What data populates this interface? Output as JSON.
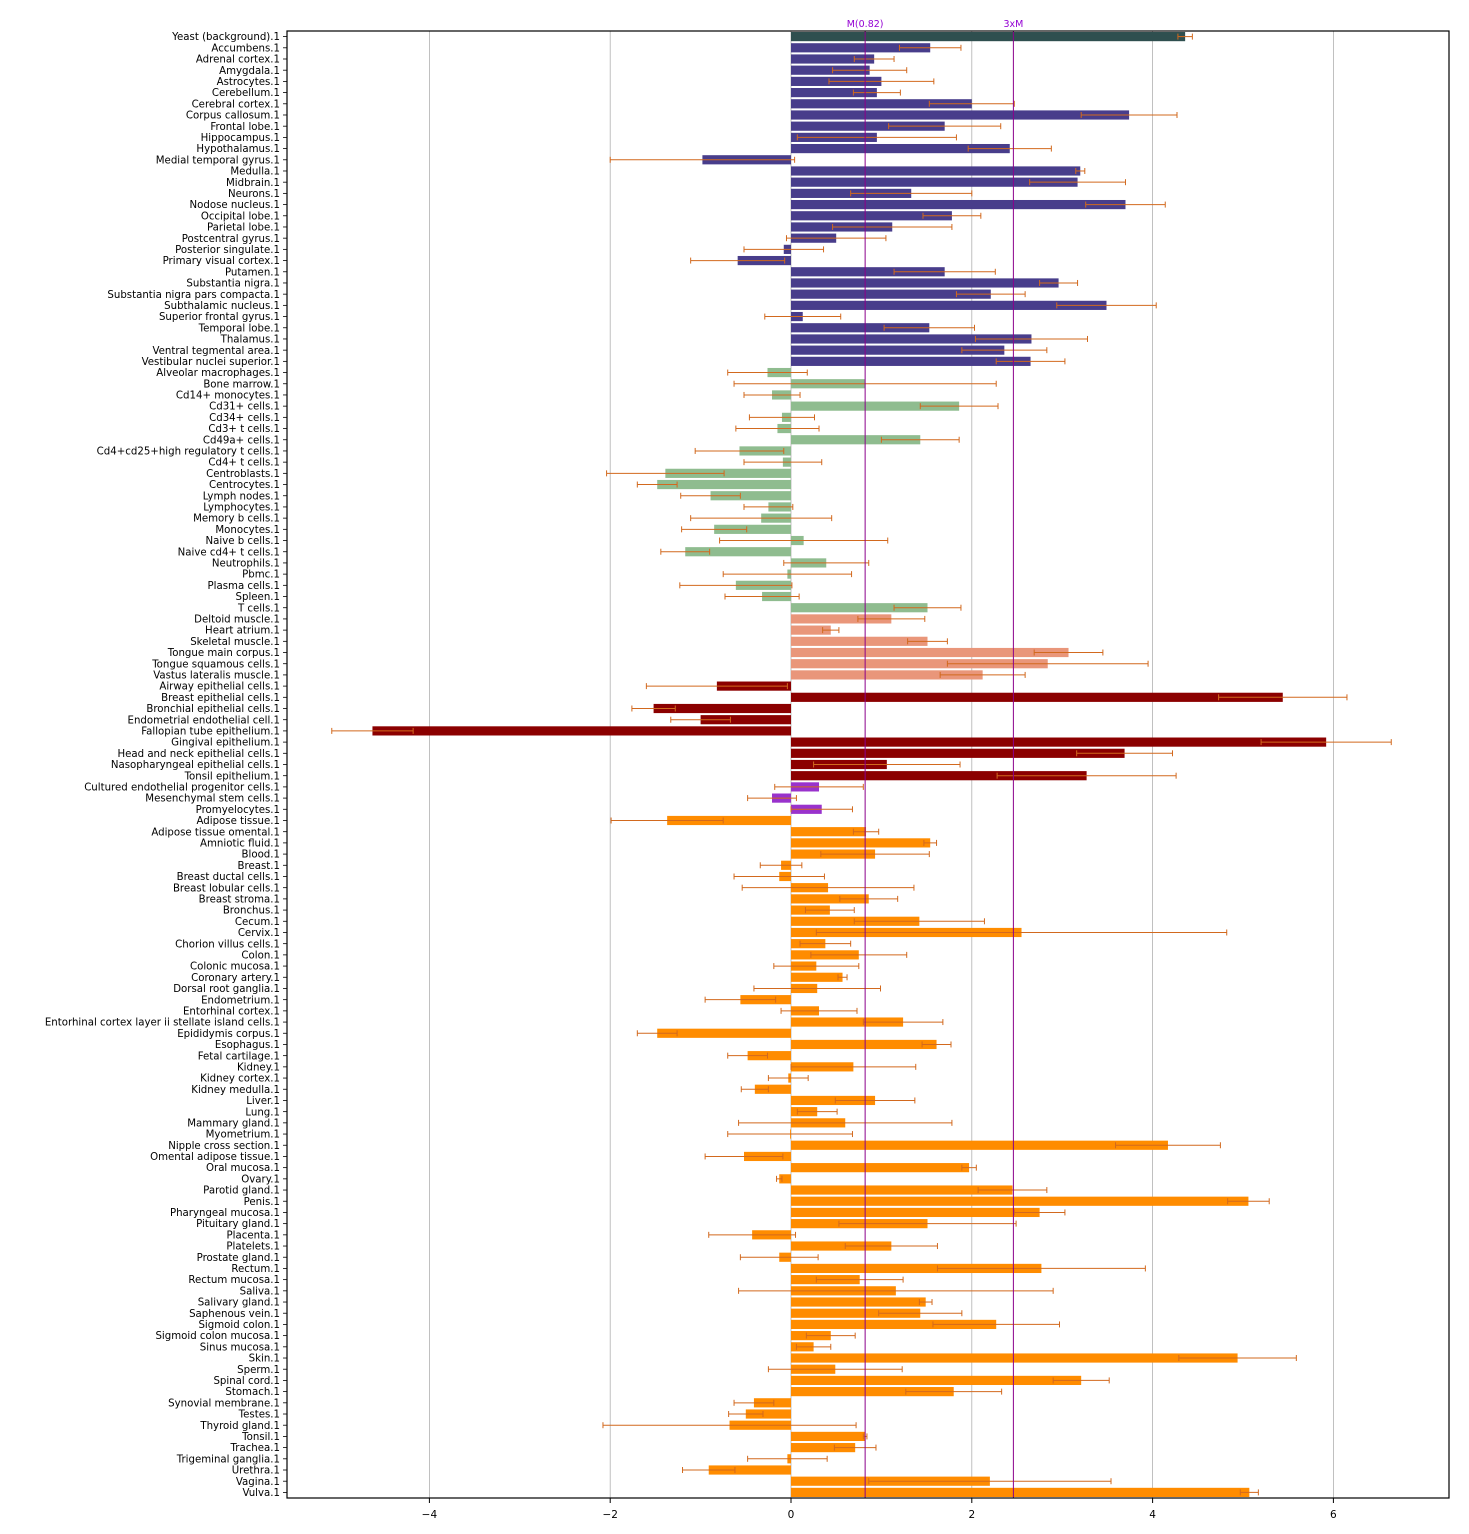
{
  "chart_data": {
    "type": "bar",
    "orientation": "horizontal",
    "title": "",
    "xlabel": "",
    "ylabel": "",
    "xlim": [
      -5.6,
      7.3
    ],
    "xticks": [
      -4,
      -2,
      0,
      2,
      4,
      6
    ],
    "xtick_labels": [
      "−4",
      "−2",
      "0",
      "2",
      "4",
      "6"
    ],
    "grid": "vertical",
    "reference_lines": [
      {
        "label": "M(0.82)",
        "value": 0.82
      },
      {
        "label": "3xM",
        "value": 2.46
      }
    ],
    "error_bar_color": "#D2691E",
    "group_colors": {
      "background": "#2F4F4F",
      "brain": "#483D8B",
      "blood": "#8FBC8F",
      "muscle": "#E9967A",
      "epithelium": "#8B0000",
      "stem": "#9932CC",
      "other": "#FF8C00"
    },
    "bars": [
      {
        "label": "Yeast (background).1",
        "value": 4.36,
        "err": 0.08,
        "group": "background"
      },
      {
        "label": "Accumbens.1",
        "value": 1.54,
        "err": 0.34,
        "group": "brain"
      },
      {
        "label": "Adrenal cortex.1",
        "value": 0.92,
        "err": 0.22,
        "group": "brain"
      },
      {
        "label": "Amygdala.1",
        "value": 0.87,
        "err": 0.41,
        "group": "brain"
      },
      {
        "label": "Astrocytes.1",
        "value": 1.0,
        "err": 0.58,
        "group": "brain"
      },
      {
        "label": "Cerebellum.1",
        "value": 0.95,
        "err": 0.26,
        "group": "brain"
      },
      {
        "label": "Cerebral cortex.1",
        "value": 2.0,
        "err": 0.47,
        "group": "brain"
      },
      {
        "label": "Corpus callosum.1",
        "value": 3.74,
        "err": 0.53,
        "group": "brain"
      },
      {
        "label": "Frontal lobe.1",
        "value": 1.7,
        "err": 0.62,
        "group": "brain"
      },
      {
        "label": "Hippocampus.1",
        "value": 0.95,
        "err": 0.88,
        "group": "brain"
      },
      {
        "label": "Hypothalamus.1",
        "value": 2.42,
        "err": 0.46,
        "group": "brain"
      },
      {
        "label": "Medial temporal gyrus.1",
        "value": -0.98,
        "err": 1.02,
        "group": "brain"
      },
      {
        "label": "Medulla.1",
        "value": 3.2,
        "err": 0.05,
        "group": "brain"
      },
      {
        "label": "Midbrain.1",
        "value": 3.17,
        "err": 0.53,
        "group": "brain"
      },
      {
        "label": "Neurons.1",
        "value": 1.33,
        "err": 0.67,
        "group": "brain"
      },
      {
        "label": "Nodose nucleus.1",
        "value": 3.7,
        "err": 0.44,
        "group": "brain"
      },
      {
        "label": "Occipital lobe.1",
        "value": 1.78,
        "err": 0.32,
        "group": "brain"
      },
      {
        "label": "Parietal lobe.1",
        "value": 1.12,
        "err": 0.66,
        "group": "brain"
      },
      {
        "label": "Postcentral gyrus.1",
        "value": 0.5,
        "err": 0.55,
        "group": "brain"
      },
      {
        "label": "Posterior singulate.1",
        "value": -0.08,
        "err": 0.44,
        "group": "brain"
      },
      {
        "label": "Primary visual cortex.1",
        "value": -0.59,
        "err": 0.52,
        "group": "brain"
      },
      {
        "label": "Putamen.1",
        "value": 1.7,
        "err": 0.56,
        "group": "brain"
      },
      {
        "label": "Substantia nigra.1",
        "value": 2.96,
        "err": 0.21,
        "group": "brain"
      },
      {
        "label": "Substantia nigra pars compacta.1",
        "value": 2.21,
        "err": 0.38,
        "group": "brain"
      },
      {
        "label": "Subthalamic nucleus.1",
        "value": 3.49,
        "err": 0.55,
        "group": "brain"
      },
      {
        "label": "Superior frontal gyrus.1",
        "value": 0.13,
        "err": 0.42,
        "group": "brain"
      },
      {
        "label": "Temporal lobe.1",
        "value": 1.53,
        "err": 0.5,
        "group": "brain"
      },
      {
        "label": "Thalamus.1",
        "value": 2.66,
        "err": 0.62,
        "group": "brain"
      },
      {
        "label": "Ventral tegmental area.1",
        "value": 2.36,
        "err": 0.47,
        "group": "brain"
      },
      {
        "label": "Vestibular nuclei superior.1",
        "value": 2.65,
        "err": 0.38,
        "group": "brain"
      },
      {
        "label": "Alveolar macrophages.1",
        "value": -0.26,
        "err": 0.44,
        "group": "blood"
      },
      {
        "label": "Bone marrow.1",
        "value": 0.82,
        "err": 1.45,
        "group": "blood"
      },
      {
        "label": "Cd14+ monocytes.1",
        "value": -0.21,
        "err": 0.31,
        "group": "blood"
      },
      {
        "label": "Cd31+ cells.1",
        "value": 1.86,
        "err": 0.43,
        "group": "blood"
      },
      {
        "label": "Cd34+ cells.1",
        "value": -0.1,
        "err": 0.36,
        "group": "blood"
      },
      {
        "label": "Cd3+ t cells.1",
        "value": -0.15,
        "err": 0.46,
        "group": "blood"
      },
      {
        "label": "Cd49a+ cells.1",
        "value": 1.43,
        "err": 0.43,
        "group": "blood"
      },
      {
        "label": "Cd4+cd25+high regulatory t cells.1",
        "value": -0.57,
        "err": 0.49,
        "group": "blood"
      },
      {
        "label": "Cd4+ t cells.1",
        "value": -0.09,
        "err": 0.43,
        "group": "blood"
      },
      {
        "label": "Centroblasts.1",
        "value": -1.39,
        "err": 0.65,
        "group": "blood"
      },
      {
        "label": "Centrocytes.1",
        "value": -1.48,
        "err": 0.22,
        "group": "blood"
      },
      {
        "label": "Lymph nodes.1",
        "value": -0.89,
        "err": 0.33,
        "group": "blood"
      },
      {
        "label": "Lymphocytes.1",
        "value": -0.25,
        "err": 0.27,
        "group": "blood"
      },
      {
        "label": "Memory b cells.1",
        "value": -0.33,
        "err": 0.78,
        "group": "blood"
      },
      {
        "label": "Monocytes.1",
        "value": -0.85,
        "err": 0.36,
        "group": "blood"
      },
      {
        "label": "Naive b cells.1",
        "value": 0.14,
        "err": 0.93,
        "group": "blood"
      },
      {
        "label": "Naive cd4+ t cells.1",
        "value": -1.17,
        "err": 0.27,
        "group": "blood"
      },
      {
        "label": "Neutrophils.1",
        "value": 0.39,
        "err": 0.47,
        "group": "blood"
      },
      {
        "label": "Pbmc.1",
        "value": -0.04,
        "err": 0.71,
        "group": "blood"
      },
      {
        "label": "Plasma cells.1",
        "value": -0.61,
        "err": 0.62,
        "group": "blood"
      },
      {
        "label": "Spleen.1",
        "value": -0.32,
        "err": 0.41,
        "group": "blood"
      },
      {
        "label": "T cells.1",
        "value": 1.51,
        "err": 0.37,
        "group": "blood"
      },
      {
        "label": "Deltoid muscle.1",
        "value": 1.11,
        "err": 0.37,
        "group": "muscle"
      },
      {
        "label": "Heart atrium.1",
        "value": 0.44,
        "err": 0.09,
        "group": "muscle"
      },
      {
        "label": "Skeletal muscle.1",
        "value": 1.51,
        "err": 0.22,
        "group": "muscle"
      },
      {
        "label": "Tongue main corpus.1",
        "value": 3.07,
        "err": 0.38,
        "group": "muscle"
      },
      {
        "label": "Tongue squamous cells.1",
        "value": 2.84,
        "err": 1.11,
        "group": "muscle"
      },
      {
        "label": "Vastus lateralis muscle.1",
        "value": 2.12,
        "err": 0.47,
        "group": "muscle"
      },
      {
        "label": "Airway epithelial cells.1",
        "value": -0.82,
        "err": 0.78,
        "group": "epithelium"
      },
      {
        "label": "Breast epithelial cells.1",
        "value": 5.44,
        "err": 0.71,
        "group": "epithelium"
      },
      {
        "label": "Bronchial epithelial cells.1",
        "value": -1.52,
        "err": 0.24,
        "group": "epithelium"
      },
      {
        "label": "Endometrial endothelial cell.1",
        "value": -1.0,
        "err": 0.33,
        "group": "epithelium"
      },
      {
        "label": "Fallopian tube epithelium.1",
        "value": -4.63,
        "err": 0.45,
        "group": "epithelium"
      },
      {
        "label": "Gingival epithelium.1",
        "value": 5.92,
        "err": 0.72,
        "group": "epithelium"
      },
      {
        "label": "Head and neck epithelial cells.1",
        "value": 3.69,
        "err": 0.53,
        "group": "epithelium"
      },
      {
        "label": "Nasopharyngeal epithelial cells.1",
        "value": 1.06,
        "err": 0.81,
        "group": "epithelium"
      },
      {
        "label": "Tonsil epithelium.1",
        "value": 3.27,
        "err": 0.99,
        "group": "epithelium"
      },
      {
        "label": "Cultured endothelial progenitor cells.1",
        "value": 0.31,
        "err": 0.49,
        "group": "stem"
      },
      {
        "label": "Mesenchymal stem cells.1",
        "value": -0.21,
        "err": 0.27,
        "group": "stem"
      },
      {
        "label": "Promyelocytes.1",
        "value": 0.34,
        "err": 0.34,
        "group": "stem"
      },
      {
        "label": "Adipose tissue.1",
        "value": -1.37,
        "err": 0.62,
        "group": "other"
      },
      {
        "label": "Adipose tissue omental.1",
        "value": 0.83,
        "err": 0.14,
        "group": "other"
      },
      {
        "label": "Amniotic fluid.1",
        "value": 1.54,
        "err": 0.07,
        "group": "other"
      },
      {
        "label": "Blood.1",
        "value": 0.93,
        "err": 0.6,
        "group": "other"
      },
      {
        "label": "Breast.1",
        "value": -0.11,
        "err": 0.23,
        "group": "other"
      },
      {
        "label": "Breast ductal cells.1",
        "value": -0.13,
        "err": 0.5,
        "group": "other"
      },
      {
        "label": "Breast lobular cells.1",
        "value": 0.41,
        "err": 0.95,
        "group": "other"
      },
      {
        "label": "Breast stroma.1",
        "value": 0.86,
        "err": 0.32,
        "group": "other"
      },
      {
        "label": "Bronchus.1",
        "value": 0.43,
        "err": 0.27,
        "group": "other"
      },
      {
        "label": "Cecum.1",
        "value": 1.42,
        "err": 0.72,
        "group": "other"
      },
      {
        "label": "Cervix.1",
        "value": 2.55,
        "err": 2.27,
        "group": "other"
      },
      {
        "label": "Chorion villus cells.1",
        "value": 0.38,
        "err": 0.28,
        "group": "other"
      },
      {
        "label": "Colon.1",
        "value": 0.75,
        "err": 0.53,
        "group": "other"
      },
      {
        "label": "Colonic mucosa.1",
        "value": 0.28,
        "err": 0.47,
        "group": "other"
      },
      {
        "label": "Coronary artery.1",
        "value": 0.57,
        "err": 0.05,
        "group": "other"
      },
      {
        "label": "Dorsal root ganglia.1",
        "value": 0.29,
        "err": 0.7,
        "group": "other"
      },
      {
        "label": "Endometrium.1",
        "value": -0.56,
        "err": 0.39,
        "group": "other"
      },
      {
        "label": "Entorhinal cortex.1",
        "value": 0.31,
        "err": 0.42,
        "group": "other"
      },
      {
        "label": "Entorhinal cortex layer ii stellate island cells.1",
        "value": 1.24,
        "err": 0.44,
        "group": "other"
      },
      {
        "label": "Epididymis corpus.1",
        "value": -1.48,
        "err": 0.22,
        "group": "other"
      },
      {
        "label": "Esophagus.1",
        "value": 1.61,
        "err": 0.16,
        "group": "other"
      },
      {
        "label": "Fetal cartilage.1",
        "value": -0.48,
        "err": 0.22,
        "group": "other"
      },
      {
        "label": "Kidney.1",
        "value": 0.69,
        "err": 0.69,
        "group": "other"
      },
      {
        "label": "Kidney cortex.1",
        "value": -0.03,
        "err": 0.22,
        "group": "other"
      },
      {
        "label": "Kidney medulla.1",
        "value": -0.4,
        "err": 0.15,
        "group": "other"
      },
      {
        "label": "Liver.1",
        "value": 0.93,
        "err": 0.44,
        "group": "other"
      },
      {
        "label": "Lung.1",
        "value": 0.29,
        "err": 0.22,
        "group": "other"
      },
      {
        "label": "Mammary gland.1",
        "value": 0.6,
        "err": 1.18,
        "group": "other"
      },
      {
        "label": "Myometrium.1",
        "value": -0.01,
        "err": 0.69,
        "group": "other"
      },
      {
        "label": "Nipple cross section.1",
        "value": 4.17,
        "err": 0.58,
        "group": "other"
      },
      {
        "label": "Omental adipose tissue.1",
        "value": -0.52,
        "err": 0.43,
        "group": "other"
      },
      {
        "label": "Oral mucosa.1",
        "value": 1.97,
        "err": 0.08,
        "group": "other"
      },
      {
        "label": "Ovary.1",
        "value": -0.13,
        "err": 0.03,
        "group": "other"
      },
      {
        "label": "Parotid gland.1",
        "value": 2.45,
        "err": 0.38,
        "group": "other"
      },
      {
        "label": "Penis.1",
        "value": 5.06,
        "err": 0.23,
        "group": "other"
      },
      {
        "label": "Pharyngeal mucosa.1",
        "value": 2.75,
        "err": 0.28,
        "group": "other"
      },
      {
        "label": "Pituitary gland.1",
        "value": 1.51,
        "err": 0.98,
        "group": "other"
      },
      {
        "label": "Placenta.1",
        "value": -0.43,
        "err": 0.48,
        "group": "other"
      },
      {
        "label": "Platelets.1",
        "value": 1.11,
        "err": 0.51,
        "group": "other"
      },
      {
        "label": "Prostate gland.1",
        "value": -0.13,
        "err": 0.43,
        "group": "other"
      },
      {
        "label": "Rectum.1",
        "value": 2.77,
        "err": 1.15,
        "group": "other"
      },
      {
        "label": "Rectum mucosa.1",
        "value": 0.76,
        "err": 0.48,
        "group": "other"
      },
      {
        "label": "Saliva.1",
        "value": 1.16,
        "err": 1.74,
        "group": "other"
      },
      {
        "label": "Salivary gland.1",
        "value": 1.49,
        "err": 0.07,
        "group": "other"
      },
      {
        "label": "Saphenous vein.1",
        "value": 1.43,
        "err": 0.46,
        "group": "other"
      },
      {
        "label": "Sigmoid colon.1",
        "value": 2.27,
        "err": 0.7,
        "group": "other"
      },
      {
        "label": "Sigmoid colon mucosa.1",
        "value": 0.44,
        "err": 0.27,
        "group": "other"
      },
      {
        "label": "Sinus mucosa.1",
        "value": 0.25,
        "err": 0.19,
        "group": "other"
      },
      {
        "label": "Skin.1",
        "value": 4.94,
        "err": 0.65,
        "group": "other"
      },
      {
        "label": "Sperm.1",
        "value": 0.49,
        "err": 0.74,
        "group": "other"
      },
      {
        "label": "Spinal cord.1",
        "value": 3.21,
        "err": 0.31,
        "group": "other"
      },
      {
        "label": "Stomach.1",
        "value": 1.8,
        "err": 0.53,
        "group": "other"
      },
      {
        "label": "Synovial membrane.1",
        "value": -0.41,
        "err": 0.22,
        "group": "other"
      },
      {
        "label": "Testes.1",
        "value": -0.5,
        "err": 0.19,
        "group": "other"
      },
      {
        "label": "Thyroid gland.1",
        "value": -0.68,
        "err": 1.4,
        "group": "other"
      },
      {
        "label": "Tonsil.1",
        "value": 0.82,
        "err": 0.02,
        "group": "other"
      },
      {
        "label": "Trachea.1",
        "value": 0.71,
        "err": 0.23,
        "group": "other"
      },
      {
        "label": "Trigeminal ganglia.1",
        "value": -0.04,
        "err": 0.44,
        "group": "other"
      },
      {
        "label": "Urethra.1",
        "value": -0.91,
        "err": 0.29,
        "group": "other"
      },
      {
        "label": "Vagina.1",
        "value": 2.2,
        "err": 1.34,
        "group": "other"
      },
      {
        "label": "Vulva.1",
        "value": 5.07,
        "err": 0.1,
        "group": "other"
      }
    ]
  }
}
